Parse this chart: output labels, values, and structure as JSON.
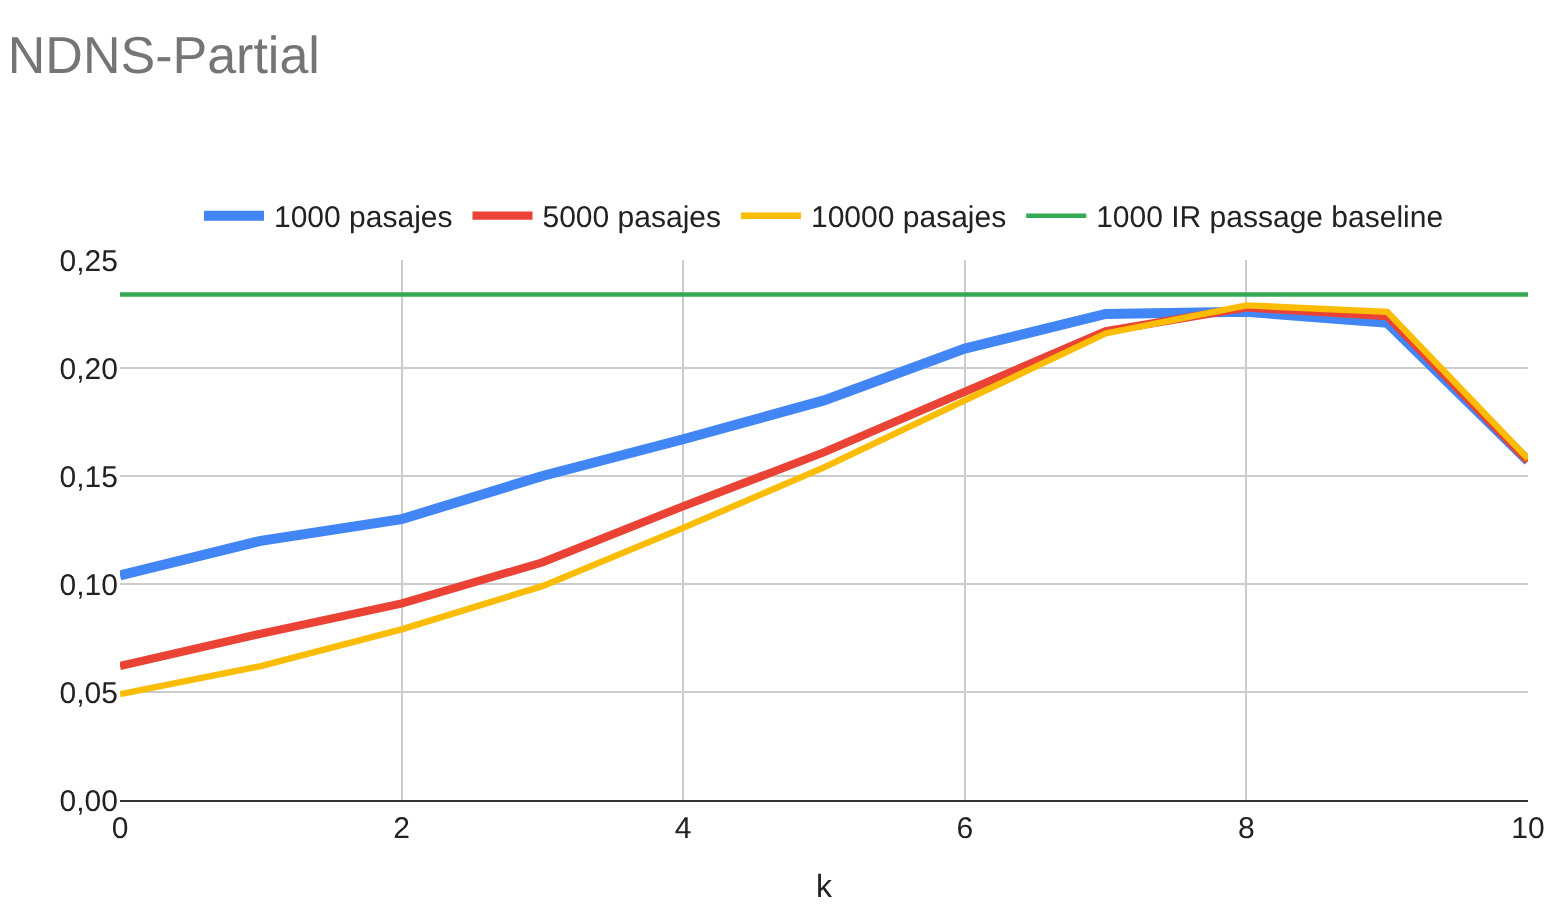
{
  "chart_data": {
    "type": "line",
    "title": "NDNS-Partial",
    "xlabel": "k",
    "x": [
      0,
      1,
      2,
      3,
      4,
      5,
      6,
      7,
      8,
      9,
      10
    ],
    "series": [
      {
        "name": "1000 pasajes",
        "color": "#4285f4",
        "values": [
          0.104,
          0.12,
          0.13,
          0.15,
          0.167,
          0.185,
          0.209,
          0.225,
          0.226,
          0.221,
          0.157
        ]
      },
      {
        "name": "5000 pasajes",
        "color": "#ea4335",
        "values": [
          0.062,
          0.077,
          0.091,
          0.11,
          0.136,
          0.161,
          0.189,
          0.217,
          0.228,
          0.224,
          0.157
        ]
      },
      {
        "name": "10000 pasajes",
        "color": "#fbbc04",
        "values": [
          0.049,
          0.062,
          0.079,
          0.099,
          0.126,
          0.154,
          0.185,
          0.216,
          0.229,
          0.226,
          0.158
        ]
      },
      {
        "name": "1000 IR passage baseline",
        "color": "#34a853",
        "values": [
          0.234,
          0.234,
          0.234,
          0.234,
          0.234,
          0.234,
          0.234,
          0.234,
          0.234,
          0.234,
          0.234
        ]
      }
    ],
    "xlim": [
      0,
      10
    ],
    "xticks": [
      0,
      2,
      4,
      6,
      8,
      10
    ],
    "ylim": [
      0,
      0.25
    ],
    "yticks": [
      {
        "value": 0,
        "label": "0,00"
      },
      {
        "value": 0.05,
        "label": "0,05"
      },
      {
        "value": 0.1,
        "label": "0,10"
      },
      {
        "value": 0.15,
        "label": "0,15"
      },
      {
        "value": 0.2,
        "label": "0,20"
      },
      {
        "value": 0.25,
        "label": "0,25"
      }
    ],
    "grid": true,
    "legend": "top",
    "marker": "none",
    "line_style": "solid"
  }
}
